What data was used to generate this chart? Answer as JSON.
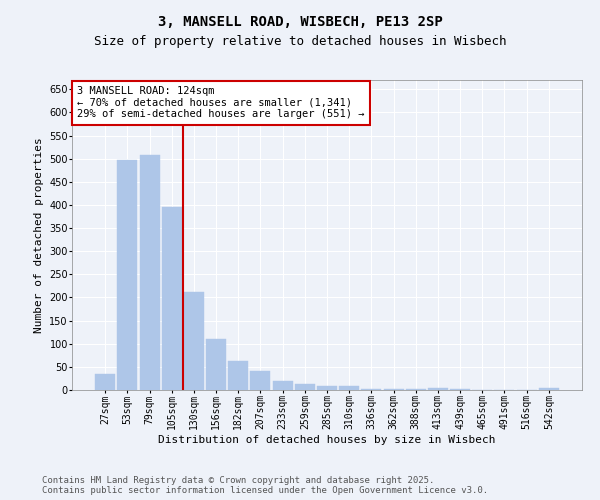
{
  "title_line1": "3, MANSELL ROAD, WISBECH, PE13 2SP",
  "title_line2": "Size of property relative to detached houses in Wisbech",
  "xlabel": "Distribution of detached houses by size in Wisbech",
  "ylabel": "Number of detached properties",
  "categories": [
    "27sqm",
    "53sqm",
    "79sqm",
    "105sqm",
    "130sqm",
    "156sqm",
    "182sqm",
    "207sqm",
    "233sqm",
    "259sqm",
    "285sqm",
    "310sqm",
    "336sqm",
    "362sqm",
    "388sqm",
    "413sqm",
    "439sqm",
    "465sqm",
    "491sqm",
    "516sqm",
    "542sqm"
  ],
  "values": [
    35,
    497,
    508,
    395,
    212,
    111,
    62,
    40,
    20,
    14,
    9,
    8,
    3,
    2,
    2,
    4,
    2,
    1,
    1,
    1,
    5
  ],
  "bar_color": "#aec6e8",
  "bar_edge_color": "#aec6e8",
  "vline_index": 4,
  "vline_color": "#cc0000",
  "annotation_text": "3 MANSELL ROAD: 124sqm\n← 70% of detached houses are smaller (1,341)\n29% of semi-detached houses are larger (551) →",
  "annotation_box_color": "#ffffff",
  "annotation_box_edge": "#cc0000",
  "ylim": [
    0,
    670
  ],
  "yticks": [
    0,
    50,
    100,
    150,
    200,
    250,
    300,
    350,
    400,
    450,
    500,
    550,
    600,
    650
  ],
  "background_color": "#eef2f9",
  "grid_color": "#ffffff",
  "footer_line1": "Contains HM Land Registry data © Crown copyright and database right 2025.",
  "footer_line2": "Contains public sector information licensed under the Open Government Licence v3.0.",
  "title1_fontsize": 10,
  "title2_fontsize": 9,
  "axis_label_fontsize": 8,
  "tick_fontsize": 7,
  "annotation_fontsize": 7.5,
  "footer_fontsize": 6.5
}
